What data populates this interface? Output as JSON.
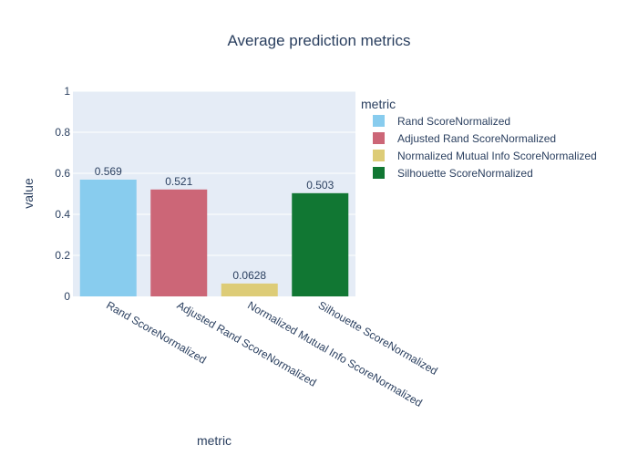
{
  "chart_data": {
    "type": "bar",
    "title": "Average prediction metrics",
    "xlabel": "metric",
    "ylabel": "value",
    "ylim": [
      0,
      1
    ],
    "yticks": [
      0,
      0.2,
      0.4,
      0.6,
      0.8,
      1
    ],
    "ytick_labels": [
      "0",
      "0.2",
      "0.4",
      "0.6",
      "0.8",
      "1"
    ],
    "categories": [
      "Rand ScoreNormalized",
      "Adjusted Rand ScoreNormalized",
      "Normalized Mutual Info ScoreNormalized",
      "Silhouette ScoreNormalized"
    ],
    "values": [
      0.569,
      0.521,
      0.0628,
      0.503
    ],
    "value_labels": [
      "0.569",
      "0.521",
      "0.0628",
      "0.503"
    ],
    "colors": [
      "#88CCEE",
      "#CC6677",
      "#DDCC77",
      "#117733"
    ],
    "plot_background": "#E5ECF6",
    "grid": true,
    "legend": {
      "title": "metric",
      "placement": "right",
      "entries": [
        "Rand ScoreNormalized",
        "Adjusted Rand ScoreNormalized",
        "Normalized Mutual Info ScoreNormalized",
        "Silhouette ScoreNormalized"
      ]
    }
  }
}
